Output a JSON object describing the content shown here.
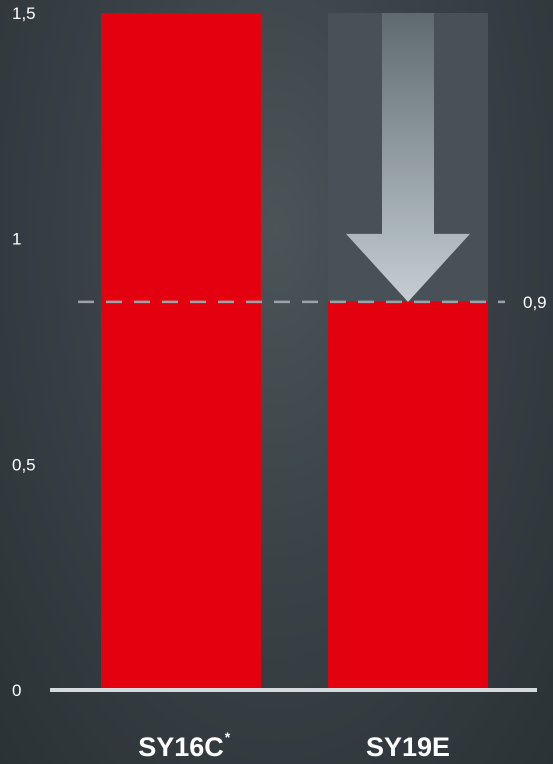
{
  "chart_data": {
    "type": "bar",
    "categories": [
      "SY16C",
      "SY19E"
    ],
    "category_superscripts": [
      "*",
      ""
    ],
    "values": [
      1.5,
      0.86
    ],
    "ylim": [
      0,
      1.5
    ],
    "yticks": [
      {
        "value": 0,
        "label": "0"
      },
      {
        "value": 0.5,
        "label": "0,5"
      },
      {
        "value": 1,
        "label": "1"
      },
      {
        "value": 1.5,
        "label": "1,5"
      }
    ],
    "reference_line": {
      "value": 0.86,
      "label": "0,9"
    },
    "reduction_arrow": {
      "on_category": "SY19E",
      "from": 1.5,
      "to": 0.86
    },
    "grid": false,
    "colors": {
      "bar": "#e3000f",
      "axis": "#d4dadd",
      "dashed_line": "#9aa3a8",
      "ghost_bar": "#485157",
      "arrow_top": "#5f6a70",
      "arrow_bottom": "#c4ced3"
    }
  }
}
